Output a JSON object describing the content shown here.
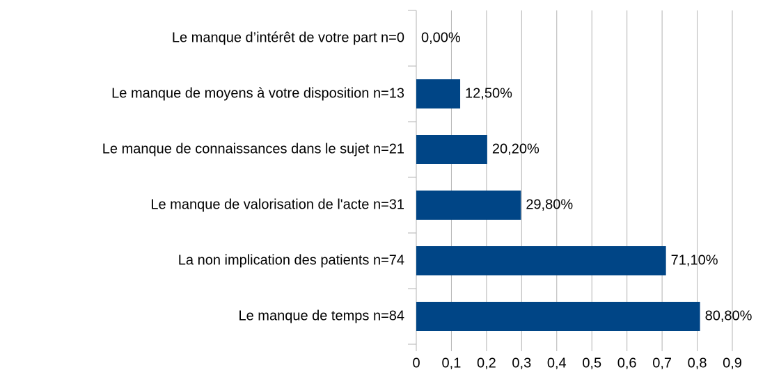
{
  "chart_data": {
    "type": "barh",
    "categories": [
      "Le manque d’intérêt de votre part n=0",
      "Le manque de moyens à votre disposition n=13",
      "Le manque de connaissances dans le sujet n=21",
      "Le manque de valorisation de l'acte n=31",
      "La non implication des patients n=74",
      "Le manque de temps n=84"
    ],
    "values": [
      0,
      0.125,
      0.202,
      0.298,
      0.711,
      0.808
    ],
    "value_labels": [
      "0,00%",
      "12,50%",
      "20,20%",
      "29,80%",
      "71,10%",
      "80,80%"
    ],
    "color": "#004586",
    "xlim": [
      0,
      0.9
    ],
    "xticks": [
      0,
      {
        "value": 0.1,
        "label": "0,1"
      },
      {
        "value": 0.2,
        "label": "0,2"
      },
      {
        "value": 0.3,
        "label": "0,3"
      },
      {
        "value": 0.4,
        "label": "0,4"
      },
      {
        "value": 0.5,
        "label": "0,5"
      },
      {
        "value": 0.6,
        "label": "0,6"
      },
      {
        "value": 0.7,
        "label": "0,7"
      },
      {
        "value": 0.8,
        "label": "0,8"
      },
      {
        "value": 0.9,
        "label": "0,9"
      }
    ],
    "grid": true
  }
}
